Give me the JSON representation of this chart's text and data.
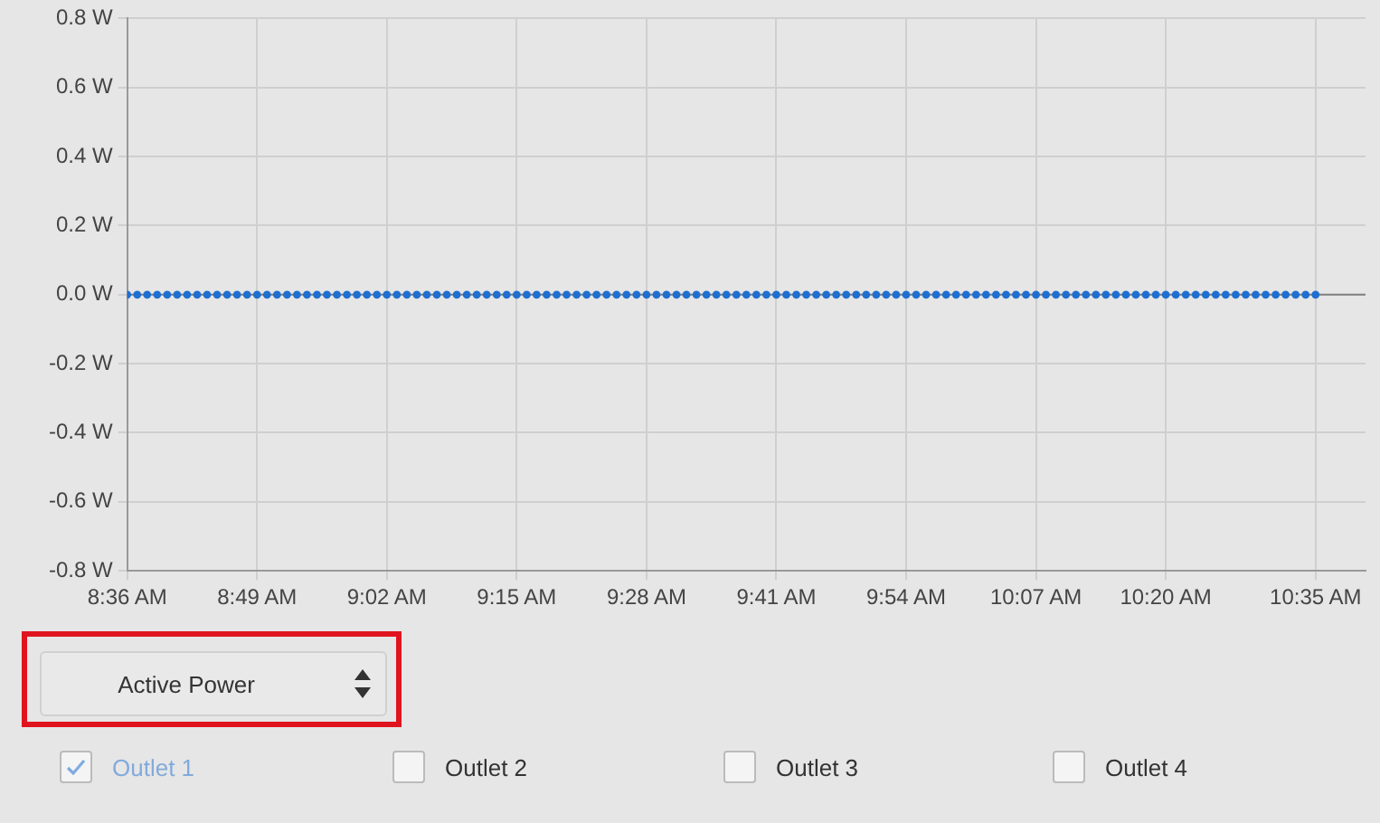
{
  "chart_data": {
    "type": "scatter",
    "x": [
      8.6,
      8.6167,
      8.6333,
      8.65,
      8.6667,
      8.6833,
      8.7,
      8.7167,
      8.7333,
      8.75,
      8.7667,
      8.7833,
      8.8,
      8.8167,
      8.8333,
      8.85,
      8.8667,
      8.8833,
      8.9,
      8.9167,
      8.9333,
      8.95,
      8.9667,
      8.9833,
      9.0,
      9.0167,
      9.0333,
      9.05,
      9.0667,
      9.0833,
      9.1,
      9.1167,
      9.1333,
      9.15,
      9.1667,
      9.1833,
      9.2,
      9.2167,
      9.2333,
      9.25,
      9.2667,
      9.2833,
      9.3,
      9.3167,
      9.3333,
      9.35,
      9.3667,
      9.3833,
      9.4,
      9.4167,
      9.4333,
      9.45,
      9.4667,
      9.4833,
      9.5,
      9.5167,
      9.5333,
      9.55,
      9.5667,
      9.5833,
      9.6,
      9.6167,
      9.6333,
      9.65,
      9.6667,
      9.6833,
      9.7,
      9.7167,
      9.7333,
      9.75,
      9.7667,
      9.7833,
      9.8,
      9.8167,
      9.8333,
      9.85,
      9.8667,
      9.8833,
      9.9,
      9.9167,
      9.9333,
      9.95,
      9.9667,
      9.9833,
      10.0,
      10.0167,
      10.0333,
      10.05,
      10.0667,
      10.0833,
      10.1,
      10.1167,
      10.1333,
      10.15,
      10.1667,
      10.1833,
      10.2,
      10.2167,
      10.2333,
      10.25,
      10.2667,
      10.2833,
      10.3,
      10.3167,
      10.3333,
      10.35,
      10.3667,
      10.3833,
      10.4,
      10.4167,
      10.4333,
      10.45,
      10.4667,
      10.4833,
      10.5,
      10.5167,
      10.5333,
      10.55,
      10.5667,
      10.5833
    ],
    "series": [
      {
        "name": "Outlet 1",
        "color": "#1f6fd1",
        "values": [
          0,
          0,
          0,
          0,
          0,
          0,
          0,
          0,
          0,
          0,
          0,
          0,
          0,
          0,
          0,
          0,
          0,
          0,
          0,
          0,
          0,
          0,
          0,
          0,
          0,
          0,
          0,
          0,
          0,
          0,
          0,
          0,
          0,
          0,
          0,
          0,
          0,
          0,
          0,
          0,
          0,
          0,
          0,
          0,
          0,
          0,
          0,
          0,
          0,
          0,
          0,
          0,
          0,
          0,
          0,
          0,
          0,
          0,
          0,
          0,
          0,
          0,
          0,
          0,
          0,
          0,
          0,
          0,
          0,
          0,
          0,
          0,
          0,
          0,
          0,
          0,
          0,
          0,
          0,
          0,
          0,
          0,
          0,
          0,
          0,
          0,
          0,
          0,
          0,
          0,
          0,
          0,
          0,
          0,
          0,
          0,
          0,
          0,
          0,
          0,
          0,
          0,
          0,
          0,
          0,
          0,
          0,
          0,
          0,
          0,
          0,
          0,
          0,
          0,
          0,
          0,
          0,
          0,
          0,
          0
        ]
      }
    ],
    "xlim": [
      8.6,
      10.6667
    ],
    "xticks": [
      {
        "value": 8.6,
        "label": "8:36 AM"
      },
      {
        "value": 8.8167,
        "label": "8:49 AM"
      },
      {
        "value": 9.0333,
        "label": "9:02 AM"
      },
      {
        "value": 9.25,
        "label": "9:15 AM"
      },
      {
        "value": 9.4667,
        "label": "9:28 AM"
      },
      {
        "value": 9.6833,
        "label": "9:41 AM"
      },
      {
        "value": 9.9,
        "label": "9:54 AM"
      },
      {
        "value": 10.1167,
        "label": "10:07 AM"
      },
      {
        "value": 10.3333,
        "label": "10:20 AM"
      },
      {
        "value": 10.5833,
        "label": "10:35 AM"
      }
    ],
    "ylim": [
      -0.8,
      0.8
    ],
    "yticks": [
      {
        "value": -0.8,
        "label": "-0.8 W"
      },
      {
        "value": -0.6,
        "label": "-0.6 W"
      },
      {
        "value": -0.4,
        "label": "-0.4 W"
      },
      {
        "value": -0.2,
        "label": "-0.2 W"
      },
      {
        "value": 0,
        "label": "0.0 W"
      },
      {
        "value": 0.2,
        "label": "0.2 W"
      },
      {
        "value": 0.4,
        "label": "0.4 W"
      },
      {
        "value": 0.6,
        "label": "0.6 W"
      },
      {
        "value": 0.8,
        "label": "0.8 W"
      }
    ],
    "ref_lines": [
      {
        "axis": "y",
        "value": 0,
        "color": "#808080"
      }
    ],
    "grid": true,
    "marker": "circle",
    "legend": "bottom left",
    "annotations": [
      "Active Power",
      "Outlet 2",
      "Outlet 3",
      "Outlet 4"
    ]
  }
}
